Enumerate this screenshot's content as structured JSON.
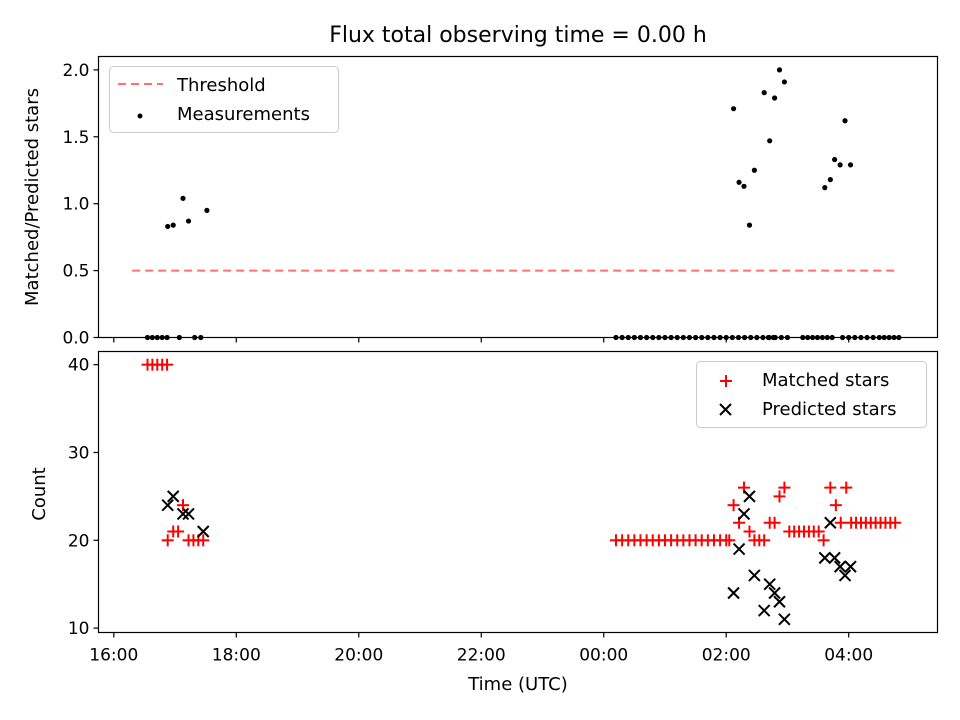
{
  "chart_data": [
    {
      "type": "scatter",
      "title": "Flux total observing time = 0.00 h",
      "xlabel": "",
      "ylabel": "Matched/Predicted stars",
      "xlim": [
        -0.25,
        13.45
      ],
      "ylim": [
        0,
        2.1
      ],
      "yticks": [
        0.0,
        0.5,
        1.0,
        1.5,
        2.0
      ],
      "ytick_labels": [
        "0.0",
        "0.5",
        "1.0",
        "1.5",
        "2.0"
      ],
      "legend_position": "top-left",
      "threshold": {
        "name": "Threshold",
        "value": 0.5,
        "x_range": [
          0.3,
          12.8
        ],
        "color": "#ff7070"
      },
      "measurements": {
        "name": "Measurements",
        "color": "#000000",
        "points": [
          [
            0.55,
            0
          ],
          [
            0.63,
            0
          ],
          [
            0.71,
            0
          ],
          [
            0.79,
            0
          ],
          [
            0.87,
            0
          ],
          [
            1.07,
            0
          ],
          [
            1.32,
            0
          ],
          [
            1.42,
            0
          ],
          [
            0.88,
            0.83
          ],
          [
            0.97,
            0.84
          ],
          [
            1.13,
            1.04
          ],
          [
            1.22,
            0.87
          ],
          [
            1.52,
            0.95
          ],
          [
            8.2,
            0
          ],
          [
            8.3,
            0
          ],
          [
            8.4,
            0
          ],
          [
            8.5,
            0
          ],
          [
            8.6,
            0
          ],
          [
            8.7,
            0
          ],
          [
            8.8,
            0
          ],
          [
            8.9,
            0
          ],
          [
            9.0,
            0
          ],
          [
            9.1,
            0
          ],
          [
            9.2,
            0
          ],
          [
            9.3,
            0
          ],
          [
            9.4,
            0
          ],
          [
            9.5,
            0
          ],
          [
            9.6,
            0
          ],
          [
            9.7,
            0
          ],
          [
            9.8,
            0
          ],
          [
            9.9,
            0
          ],
          [
            10.0,
            0
          ],
          [
            10.1,
            0
          ],
          [
            10.2,
            0
          ],
          [
            10.3,
            0
          ],
          [
            10.4,
            0
          ],
          [
            10.5,
            0
          ],
          [
            10.6,
            0
          ],
          [
            10.7,
            0
          ],
          [
            10.8,
            0
          ],
          [
            10.9,
            0
          ],
          [
            11.0,
            0
          ],
          [
            11.9,
            0
          ],
          [
            12.0,
            0
          ],
          [
            12.1,
            0
          ],
          [
            12.2,
            0
          ],
          [
            12.3,
            0
          ],
          [
            12.4,
            0
          ],
          [
            10.69,
            0
          ],
          [
            10.77,
            0
          ],
          [
            11.25,
            0
          ],
          [
            11.33,
            0
          ],
          [
            11.41,
            0
          ],
          [
            11.49,
            0
          ],
          [
            11.57,
            0
          ],
          [
            11.65,
            0
          ],
          [
            11.73,
            0
          ],
          [
            12.5,
            0
          ],
          [
            12.58,
            0
          ],
          [
            12.66,
            0
          ],
          [
            12.74,
            0
          ],
          [
            12.82,
            0
          ],
          [
            10.12,
            1.71
          ],
          [
            10.21,
            1.16
          ],
          [
            10.29,
            1.13
          ],
          [
            10.38,
            0.84
          ],
          [
            10.46,
            1.25
          ],
          [
            10.62,
            1.83
          ],
          [
            10.71,
            1.47
          ],
          [
            10.79,
            1.79
          ],
          [
            10.87,
            2.0
          ],
          [
            10.95,
            1.91
          ],
          [
            11.61,
            1.12
          ],
          [
            11.7,
            1.18
          ],
          [
            11.77,
            1.33
          ],
          [
            11.86,
            1.29
          ],
          [
            11.94,
            1.62
          ],
          [
            12.03,
            1.29
          ]
        ]
      }
    },
    {
      "type": "scatter",
      "xlabel": "Time (UTC)",
      "ylabel": "Count",
      "xlim": [
        -0.25,
        13.45
      ],
      "ylim": [
        9.5,
        41.5
      ],
      "yticks": [
        10,
        20,
        30,
        40
      ],
      "ytick_labels": [
        "10",
        "20",
        "30",
        "40"
      ],
      "xticks": [
        0,
        2,
        4,
        6,
        8,
        10,
        12
      ],
      "xtick_labels": [
        "16:00",
        "18:00",
        "20:00",
        "22:00",
        "00:00",
        "02:00",
        "04:00"
      ],
      "legend_position": "top-right",
      "series": [
        {
          "name": "Matched stars",
          "marker": "+",
          "color": "#ff0000",
          "points": [
            [
              0.55,
              40
            ],
            [
              0.63,
              40
            ],
            [
              0.71,
              40
            ],
            [
              0.79,
              40
            ],
            [
              0.87,
              40
            ],
            [
              0.88,
              20
            ],
            [
              0.97,
              21
            ],
            [
              1.05,
              21
            ],
            [
              1.13,
              24
            ],
            [
              1.22,
              20
            ],
            [
              1.3,
              20
            ],
            [
              1.38,
              20
            ],
            [
              1.46,
              20
            ],
            [
              8.2,
              20
            ],
            [
              8.3,
              20
            ],
            [
              8.4,
              20
            ],
            [
              8.5,
              20
            ],
            [
              8.6,
              20
            ],
            [
              8.7,
              20
            ],
            [
              8.8,
              20
            ],
            [
              8.9,
              20
            ],
            [
              9.0,
              20
            ],
            [
              9.1,
              20
            ],
            [
              9.2,
              20
            ],
            [
              9.3,
              20
            ],
            [
              9.4,
              20
            ],
            [
              9.5,
              20
            ],
            [
              9.6,
              20
            ],
            [
              9.7,
              20
            ],
            [
              9.8,
              20
            ],
            [
              9.9,
              20
            ],
            [
              10.0,
              20
            ],
            [
              10.05,
              20
            ],
            [
              10.12,
              24
            ],
            [
              10.21,
              22
            ],
            [
              10.29,
              26
            ],
            [
              10.38,
              21
            ],
            [
              10.46,
              20
            ],
            [
              10.54,
              20
            ],
            [
              10.62,
              20
            ],
            [
              10.71,
              22
            ],
            [
              10.79,
              22
            ],
            [
              10.87,
              25
            ],
            [
              10.95,
              26
            ],
            [
              11.03,
              21
            ],
            [
              11.11,
              21
            ],
            [
              11.19,
              21
            ],
            [
              11.27,
              21
            ],
            [
              11.35,
              21
            ],
            [
              11.43,
              21
            ],
            [
              11.51,
              21
            ],
            [
              11.59,
              20
            ],
            [
              11.7,
              26
            ],
            [
              11.79,
              24
            ],
            [
              11.87,
              22
            ],
            [
              11.96,
              26
            ],
            [
              12.04,
              22
            ],
            [
              12.12,
              22
            ],
            [
              12.2,
              22
            ],
            [
              12.28,
              22
            ],
            [
              12.36,
              22
            ],
            [
              12.44,
              22
            ],
            [
              12.52,
              22
            ],
            [
              12.6,
              22
            ],
            [
              12.68,
              22
            ],
            [
              12.76,
              22
            ]
          ]
        },
        {
          "name": "Predicted stars",
          "marker": "x",
          "color": "#000000",
          "points": [
            [
              0.88,
              24
            ],
            [
              0.97,
              25
            ],
            [
              1.13,
              23
            ],
            [
              1.22,
              23
            ],
            [
              1.46,
              21
            ],
            [
              10.12,
              14
            ],
            [
              10.21,
              19
            ],
            [
              10.29,
              23
            ],
            [
              10.38,
              25
            ],
            [
              10.46,
              16
            ],
            [
              10.62,
              12
            ],
            [
              10.71,
              15
            ],
            [
              10.79,
              14
            ],
            [
              10.87,
              13
            ],
            [
              10.95,
              11
            ],
            [
              11.61,
              18
            ],
            [
              11.7,
              22
            ],
            [
              11.77,
              18
            ],
            [
              11.86,
              17
            ],
            [
              11.94,
              16
            ],
            [
              12.03,
              17
            ]
          ]
        }
      ]
    }
  ]
}
